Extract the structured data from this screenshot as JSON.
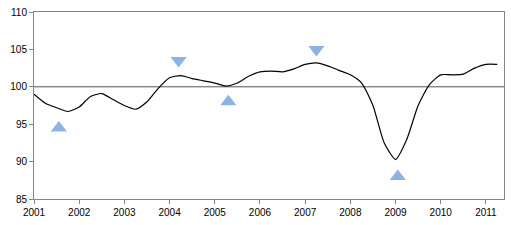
{
  "chart_data": {
    "type": "line",
    "x": [
      2001.0,
      2001.25,
      2001.5,
      2001.75,
      2002.0,
      2002.25,
      2002.5,
      2002.75,
      2003.0,
      2003.25,
      2003.5,
      2003.75,
      2004.0,
      2004.25,
      2004.5,
      2004.75,
      2005.0,
      2005.25,
      2005.5,
      2005.75,
      2006.0,
      2006.25,
      2006.5,
      2006.75,
      2007.0,
      2007.25,
      2007.5,
      2007.75,
      2008.0,
      2008.25,
      2008.5,
      2008.75,
      2009.0,
      2009.25,
      2009.5,
      2009.75,
      2010.0,
      2010.25,
      2010.5,
      2010.75,
      2011.0,
      2011.25
    ],
    "series": [
      {
        "type": "line",
        "color": "#000000",
        "values": [
          99.0,
          97.8,
          97.2,
          96.7,
          97.3,
          98.7,
          99.1,
          98.3,
          97.5,
          97.0,
          98.0,
          99.8,
          101.2,
          101.5,
          101.1,
          100.8,
          100.5,
          100.1,
          100.5,
          101.4,
          102.0,
          102.1,
          102.0,
          102.4,
          103.0,
          103.2,
          102.8,
          102.2,
          101.6,
          100.5,
          97.5,
          92.5,
          90.3,
          93.0,
          97.5,
          100.3,
          101.6,
          101.6,
          101.7,
          102.5,
          103.0,
          103.0
        ]
      },
      {
        "type": "scatter",
        "marker": "triangle-up",
        "color": "#8db3e2",
        "x": [
          2001.55,
          2005.3,
          2009.05
        ],
        "values": [
          94.5,
          98.0,
          88.0
        ]
      },
      {
        "type": "scatter",
        "marker": "triangle-down",
        "color": "#8db3e2",
        "x": [
          2004.2,
          2007.25
        ],
        "values": [
          103.5,
          105.0
        ]
      }
    ],
    "hline": 100,
    "xlim": [
      2001,
      2011.4
    ],
    "xticks": [
      2001,
      2002,
      2003,
      2004,
      2005,
      2006,
      2007,
      2008,
      2009,
      2010,
      2011
    ],
    "ylim": [
      85,
      110
    ],
    "yticks": [
      85,
      90,
      95,
      100,
      105,
      110
    ],
    "grid": false
  }
}
